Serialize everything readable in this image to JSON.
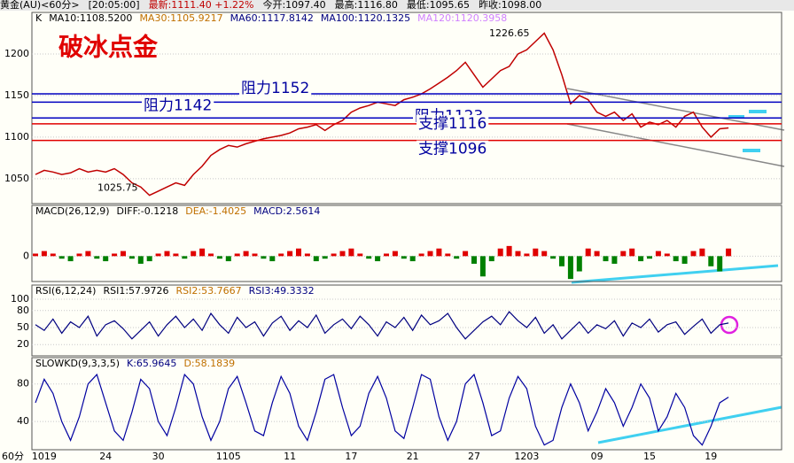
{
  "header": {
    "items": [
      "黄金(AU)<60分>",
      "[20:05:00]",
      "最新:1111.40 +1.22%",
      "今开:1097.40",
      "最高:1116.80",
      "最低:1095.65",
      "昨收:1098.00"
    ]
  },
  "chart_data": [
    {
      "type": "line",
      "title": "破冰点金",
      "series": [
        {
          "name": "K",
          "color": "#c00000",
          "values": [
            1055,
            1060,
            1058,
            1055,
            1057,
            1062,
            1058,
            1060,
            1058,
            1062,
            1055,
            1045,
            1040,
            1030,
            1035,
            1040,
            1045,
            1042,
            1055,
            1065,
            1078,
            1085,
            1090,
            1088,
            1092,
            1095,
            1098,
            1100,
            1102,
            1105,
            1110,
            1112,
            1115,
            1108,
            1115,
            1120,
            1130,
            1135,
            1138,
            1142,
            1140,
            1138,
            1145,
            1148,
            1152,
            1158,
            1165,
            1172,
            1180,
            1190,
            1175,
            1160,
            1170,
            1180,
            1185,
            1200,
            1205,
            1215,
            1225,
            1205,
            1175,
            1140,
            1150,
            1145,
            1130,
            1125,
            1130,
            1120,
            1128,
            1112,
            1118,
            1115,
            1120,
            1112,
            1125,
            1130,
            1112,
            1100,
            1110,
            1111
          ]
        }
      ],
      "legend": [
        {
          "text": "MA10:1108.5200",
          "color": "#000000"
        },
        {
          "text": "MA30:1105.9217",
          "color": "#c07000"
        },
        {
          "text": "MA60:1117.8142",
          "color": "#000080"
        },
        {
          "text": "MA100:1120.1325",
          "color": "#000080"
        },
        {
          "text": "MA120:1120.3958",
          "color": "#d080ff"
        }
      ],
      "annotations": [
        {
          "label": "1226.65",
          "value": 1226.65
        },
        {
          "label": "1025.75",
          "value": 1025.75
        }
      ],
      "levels": [
        {
          "label": "阻力1152",
          "value": 1152,
          "color": "#0000c0"
        },
        {
          "label": "阻力1142",
          "value": 1142,
          "color": "#0000c0"
        },
        {
          "label": "阻力1123",
          "value": 1123,
          "color": "#0000c0"
        },
        {
          "label": "支撑1116",
          "value": 1116,
          "color": "#e00000"
        },
        {
          "label": "支撑1096",
          "value": 1096,
          "color": "#e00000"
        }
      ],
      "ylim": [
        1020,
        1250
      ],
      "yticks": [
        1050,
        1100,
        1150,
        1200
      ],
      "grid": true
    },
    {
      "type": "bar",
      "legend": [
        {
          "text": "MACD(26,12,9)",
          "color": "#000000"
        },
        {
          "text": "DIFF:-0.1218",
          "color": "#000000"
        },
        {
          "text": "DEA:-1.4025",
          "color": "#c07000"
        },
        {
          "text": "MACD:2.5614",
          "color": "#000080"
        }
      ],
      "values": [
        1,
        2,
        1,
        -1,
        -2,
        1,
        2,
        -1,
        -2,
        1,
        2,
        -1,
        -3,
        -2,
        1,
        2,
        1,
        -1,
        2,
        3,
        1,
        -1,
        -2,
        1,
        2,
        1,
        -1,
        -2,
        1,
        2,
        3,
        1,
        -2,
        -1,
        1,
        2,
        3,
        1,
        -1,
        -2,
        1,
        2,
        -1,
        -2,
        1,
        2,
        3,
        1,
        -1,
        2,
        -3,
        -8,
        -2,
        3,
        4,
        2,
        1,
        3,
        2,
        -1,
        -4,
        -9,
        -6,
        3,
        2,
        -2,
        -3,
        2,
        3,
        -2,
        -1,
        2,
        1,
        -2,
        -3,
        2,
        3,
        -4,
        -6,
        3
      ],
      "up_color": "#e00000",
      "down_color": "#008000",
      "ylim": [
        -10,
        20
      ],
      "yticks": [
        0
      ],
      "grid": true
    },
    {
      "type": "line",
      "legend": [
        {
          "text": "RSI(6,12,24)",
          "color": "#000000"
        },
        {
          "text": "RSI1:57.9726",
          "color": "#000000"
        },
        {
          "text": "RSI2:53.7667",
          "color": "#c07000"
        },
        {
          "text": "RSI3:49.3332",
          "color": "#000080"
        }
      ],
      "values": [
        55,
        45,
        65,
        40,
        60,
        50,
        70,
        35,
        55,
        62,
        48,
        30,
        45,
        60,
        35,
        55,
        70,
        50,
        65,
        45,
        75,
        55,
        40,
        68,
        50,
        60,
        35,
        58,
        70,
        45,
        62,
        50,
        72,
        40,
        55,
        65,
        48,
        70,
        55,
        35,
        60,
        50,
        68,
        45,
        72,
        55,
        62,
        75,
        50,
        30,
        45,
        60,
        70,
        55,
        78,
        62,
        50,
        68,
        40,
        55,
        30,
        45,
        60,
        40,
        55,
        48,
        62,
        35,
        58,
        50,
        65,
        42,
        55,
        60,
        38,
        52,
        65,
        40,
        55,
        58
      ],
      "color": "#000080",
      "ylim": [
        0,
        125
      ],
      "yticks": [
        20,
        50,
        80,
        100
      ],
      "grid": true
    },
    {
      "type": "line",
      "legend": [
        {
          "text": "SLOWKD(9,3,3,5)",
          "color": "#000000"
        },
        {
          "text": "K:65.9645",
          "color": "#000080"
        },
        {
          "text": "D:58.1839",
          "color": "#c07000"
        }
      ],
      "values": [
        60,
        85,
        70,
        40,
        20,
        45,
        80,
        90,
        60,
        30,
        20,
        50,
        85,
        75,
        40,
        25,
        55,
        90,
        80,
        45,
        20,
        40,
        75,
        88,
        60,
        30,
        25,
        60,
        88,
        70,
        35,
        20,
        50,
        85,
        90,
        55,
        25,
        35,
        70,
        88,
        65,
        30,
        22,
        55,
        90,
        85,
        45,
        20,
        40,
        80,
        90,
        60,
        25,
        30,
        65,
        88,
        75,
        35,
        15,
        20,
        55,
        80,
        60,
        30,
        50,
        75,
        60,
        35,
        55,
        80,
        65,
        30,
        45,
        70,
        55,
        25,
        15,
        35,
        60,
        66
      ],
      "color": "#0000a0",
      "ylim": [
        10,
        108
      ],
      "yticks": [
        40,
        80
      ],
      "grid": true,
      "x_unit": "60分",
      "categories": [
        null,
        "1019",
        null,
        null,
        null,
        null,
        null,
        null,
        "24",
        null,
        null,
        null,
        null,
        null,
        "30",
        null,
        null,
        null,
        null,
        null,
        null,
        null,
        "1105",
        null,
        null,
        null,
        null,
        null,
        null,
        "11",
        null,
        null,
        null,
        null,
        null,
        null,
        "17",
        null,
        null,
        null,
        null,
        null,
        null,
        "21",
        null,
        null,
        null,
        null,
        null,
        null,
        "27",
        null,
        null,
        null,
        null,
        null,
        "1203",
        null,
        null,
        null,
        null,
        null,
        null,
        null,
        "09",
        null,
        null,
        null,
        null,
        null,
        "15",
        null,
        null,
        null,
        null,
        null,
        null,
        "19",
        null,
        null
      ]
    }
  ]
}
